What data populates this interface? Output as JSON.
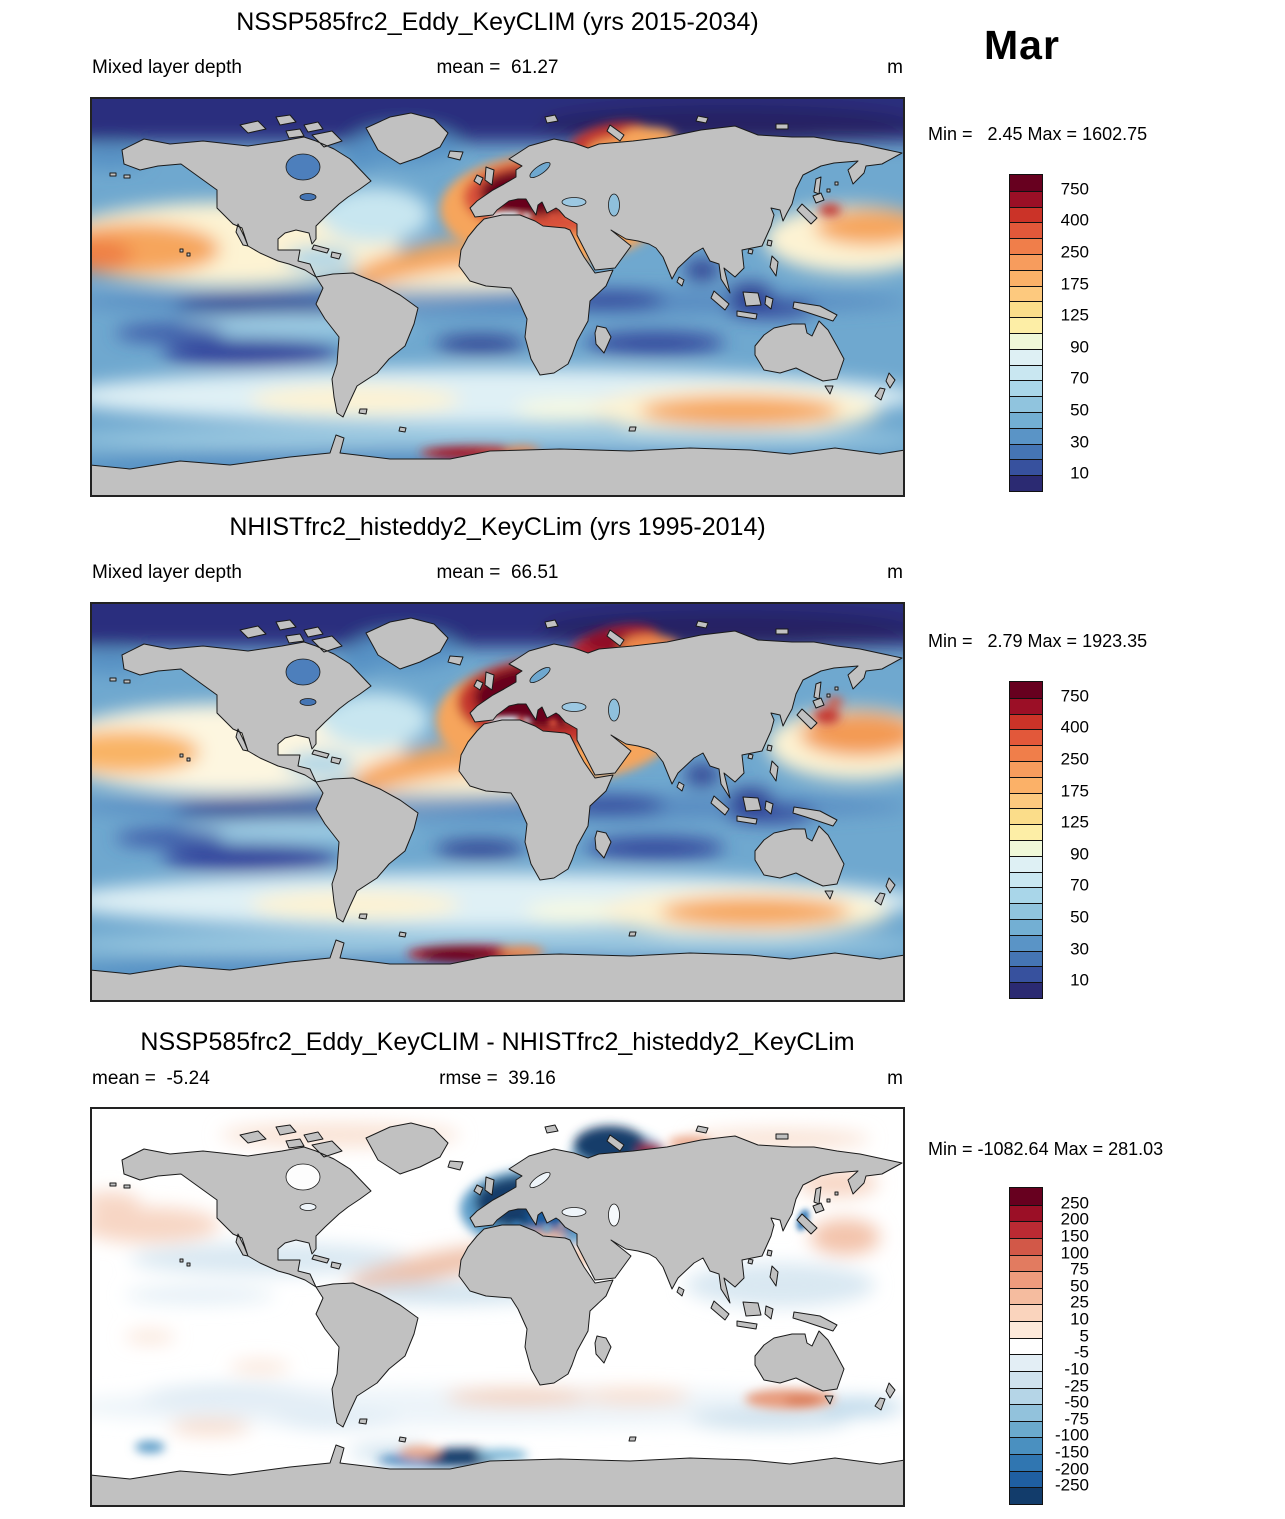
{
  "figure": {
    "month_label": "Mar",
    "panels": [
      {
        "title": "NSSP585frc2_Eddy_KeyCLIM (yrs 2015-2034)",
        "left_label": "Mixed layer depth",
        "center_label": "mean =  61.27",
        "unit_label": "m",
        "minmax_label": "Min =   2.45 Max = 1602.75"
      },
      {
        "title": "NHISTfrc2_histeddy2_KeyCLim (yrs 1995-2014)",
        "left_label": "Mixed layer depth",
        "center_label": "mean =  66.51",
        "unit_label": "m",
        "minmax_label": "Min =   2.79 Max = 1923.35"
      },
      {
        "title": "NSSP585frc2_Eddy_KeyCLIM - NHISTfrc2_histeddy2_KeyCLim",
        "left_label": "mean =  -5.24",
        "center_label": "rmse =  39.16",
        "unit_label": "m",
        "minmax_label": "Min = -1082.64 Max = 281.03"
      }
    ]
  },
  "chart_data": [
    {
      "type": "heatmap",
      "subtype": "global_map_equirectangular",
      "title": "NSSP585frc2_Eddy_KeyCLIM (yrs 2015-2034)",
      "variable": "Mixed layer depth",
      "units": "m",
      "month": "Mar",
      "stats": {
        "mean": 61.27,
        "min": 2.45,
        "max": 1602.75
      },
      "colorbar": {
        "orientation": "vertical",
        "n_segments": 20,
        "colors_top_to_bottom": [
          "#67001f",
          "#9b0f26",
          "#cb3328",
          "#e2583a",
          "#f07e4a",
          "#f79c5d",
          "#fbb168",
          "#fdc97e",
          "#fbdd8a",
          "#fdeea6",
          "#eff8d8",
          "#def0f4",
          "#c9e7f1",
          "#a9d6e9",
          "#90c4de",
          "#73afd3",
          "#5a94c6",
          "#4575b4",
          "#37519e",
          "#2b2a72"
        ],
        "tick_labels_top_to_bottom": [
          750,
          400,
          250,
          175,
          125,
          90,
          70,
          50,
          30,
          10
        ],
        "tick_first_boundary": 1,
        "tick_boundary_step": 2
      },
      "notable_features": [
        "Deepest mixed layers (dark red, >750 m) in the subpolar North Atlantic and Nordic Seas",
        "Warm-colored bands (100-300 m) in the NW Pacific, along ~40S and south of Australia",
        "Red streak near 57S in the South Atlantic sector",
        "Shallow values (dark blue, <10-30 m) along the Arctic margin and tropical bands",
        "Continents masked in gray"
      ]
    },
    {
      "type": "heatmap",
      "subtype": "global_map_equirectangular",
      "title": "NHISTfrc2_histeddy2_KeyCLim (yrs 1995-2014)",
      "variable": "Mixed layer depth",
      "units": "m",
      "month": "Mar",
      "stats": {
        "mean": 66.51,
        "min": 2.79,
        "max": 1923.35
      },
      "colorbar": {
        "orientation": "vertical",
        "n_segments": 20,
        "colors_top_to_bottom": [
          "#67001f",
          "#9b0f26",
          "#cb3328",
          "#e2583a",
          "#f07e4a",
          "#f79c5d",
          "#fbb168",
          "#fdc97e",
          "#fbdd8a",
          "#fdeea6",
          "#eff8d8",
          "#def0f4",
          "#c9e7f1",
          "#a9d6e9",
          "#90c4de",
          "#73afd3",
          "#5a94c6",
          "#4575b4",
          "#37519e",
          "#2b2a72"
        ],
        "tick_labels_top_to_bottom": [
          750,
          400,
          250,
          175,
          125,
          90,
          70,
          50,
          30,
          10
        ],
        "tick_first_boundary": 1,
        "tick_boundary_step": 2
      },
      "notable_features": [
        "Larger and deeper North Atlantic maximum (dark maroon) extending into the Nordic Seas",
        "Dark red patch near 60S south of Africa",
        "Pale yellow band across the North Pacific and Southern Ocean mid-latitudes"
      ]
    },
    {
      "type": "heatmap",
      "subtype": "global_map_equirectangular_difference",
      "title": "NSSP585frc2_Eddy_KeyCLIM - NHISTfrc2_histeddy2_KeyCLim",
      "variable": "Mixed layer depth difference",
      "units": "m",
      "month": "Mar",
      "stats": {
        "mean": -5.24,
        "rmse": 39.16,
        "min": -1082.64,
        "max": 281.03
      },
      "colorbar": {
        "orientation": "vertical",
        "n_segments": 19,
        "colors_top_to_bottom": [
          "#67001f",
          "#9b0f26",
          "#bb2a33",
          "#d25848",
          "#e27b60",
          "#ee9b7d",
          "#f5bc9f",
          "#fad4bd",
          "#fde9da",
          "#ffffff",
          "#e3eef5",
          "#cfe2ee",
          "#b5d5e7",
          "#92c2dc",
          "#6baacd",
          "#4a90c0",
          "#3076b1",
          "#1f5fa2",
          "#123c6b"
        ],
        "tick_labels_top_to_bottom": [
          250,
          200,
          150,
          100,
          75,
          50,
          25,
          10,
          5,
          -5,
          -10,
          -25,
          -50,
          -75,
          -100,
          -150,
          -200,
          -250
        ],
        "tick_first_boundary": 1,
        "tick_boundary_step": 1
      },
      "notable_features": [
        "Strong negative differences (dark blue) in the Labrador/Irminger Seas and Nordic Seas",
        "Dark blue patch near 60S south of Africa",
        "Mostly near-zero (white) elsewhere with weak +/-25 m pink and light blue patches"
      ]
    }
  ]
}
